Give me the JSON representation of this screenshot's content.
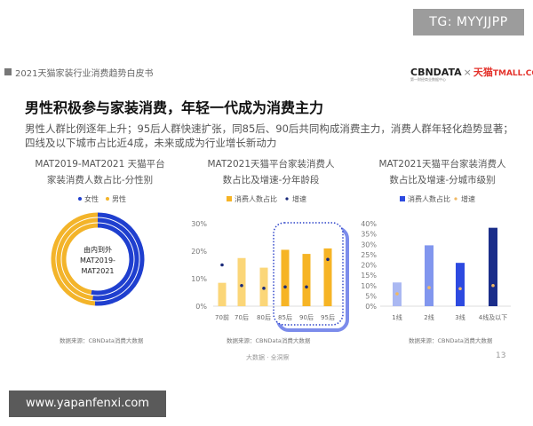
{
  "watermark_top": "TG: MYYJJPP",
  "watermark_bottom": "www.yapanfenxi.com",
  "header": {
    "report_title": "2021天猫家装行业消费趋势白皮书",
    "logo_cbn": "CBNDATA",
    "logo_x": "×",
    "logo_tmall": "天猫",
    "logo_tmall_en": "TMALL.COM",
    "logo_sub": "第一财经商业数据中心"
  },
  "slide": {
    "title": "男性积极参与家装消费，年轻一代成为消费主力",
    "description": "男性人群比例逐年上升；95后人群快速扩张，同85后、90后共同构成消费主力，消费人群年轻化趋势显著；四线及以下城市占比近4成，未来或成为行业增长新动力"
  },
  "footer": {
    "tagline": "大数据 · 全洞察",
    "page_number": "13"
  },
  "chart_data": [
    {
      "type": "donut",
      "title_line1": "MAT2019-MAT2021 天猫平台",
      "title_line2": "家装消费人数占比-分性别",
      "legend": [
        "女性",
        "男性"
      ],
      "center_label": [
        "由内到外",
        "MAT2019-",
        "MAT2021"
      ],
      "rings": [
        {
          "period": "MAT2019",
          "female": 53,
          "male": 47
        },
        {
          "period": "MAT2020",
          "female": 52,
          "male": 48
        },
        {
          "period": "MAT2021",
          "female": 51,
          "male": 49
        }
      ],
      "colors": {
        "female": "#1f3fcf",
        "male": "#f3b42a"
      },
      "source": "数据来源：CBNData消费大数据"
    },
    {
      "type": "bar",
      "title_line1": "MAT2021天猫平台家装消费人",
      "title_line2": "数占比及增速-分年龄段",
      "legend": [
        "消费人数占比",
        "增速"
      ],
      "categories": [
        "70前",
        "70后",
        "80后",
        "85后",
        "90后",
        "95后"
      ],
      "series": [
        {
          "name": "消费人数占比",
          "values": [
            8.5,
            17.5,
            14,
            20.5,
            19,
            21
          ]
        },
        {
          "name": "增速",
          "values": [
            15,
            7.5,
            6.5,
            7,
            7,
            17
          ]
        }
      ],
      "yticks": [
        "0%",
        "10%",
        "20%",
        "30%"
      ],
      "ylim": [
        0,
        30
      ],
      "highlight": [
        "85后",
        "90后",
        "95后"
      ],
      "colors": {
        "bar_light": "#fbd678",
        "bar": "#f6b425",
        "dot": "#1a2a7a",
        "highlight": "#2f45c9"
      },
      "source": "数据来源：CBNData消费大数据"
    },
    {
      "type": "bar",
      "title_line1": "MAT2021天猫平台家装消费人",
      "title_line2": "数占比及增速-分城市级别",
      "legend": [
        "消费人数占比",
        "增速"
      ],
      "categories": [
        "1线",
        "2线",
        "3线",
        "4线及以下"
      ],
      "series": [
        {
          "name": "消费人数占比",
          "values": [
            11.5,
            29.5,
            21,
            38
          ]
        },
        {
          "name": "增速",
          "values": [
            6,
            9,
            8.5,
            10
          ]
        }
      ],
      "yticks": [
        "0%",
        "5%",
        "10%",
        "15%",
        "20%",
        "25%",
        "30%",
        "35%",
        "40%"
      ],
      "ylim": [
        0,
        40
      ],
      "colors": {
        "bars": [
          "#aab8f2",
          "#8196ee",
          "#2d4ae0",
          "#1a2d8a"
        ],
        "dot": "#f0b863"
      },
      "source": "数据来源：CBNData消费大数据"
    }
  ]
}
